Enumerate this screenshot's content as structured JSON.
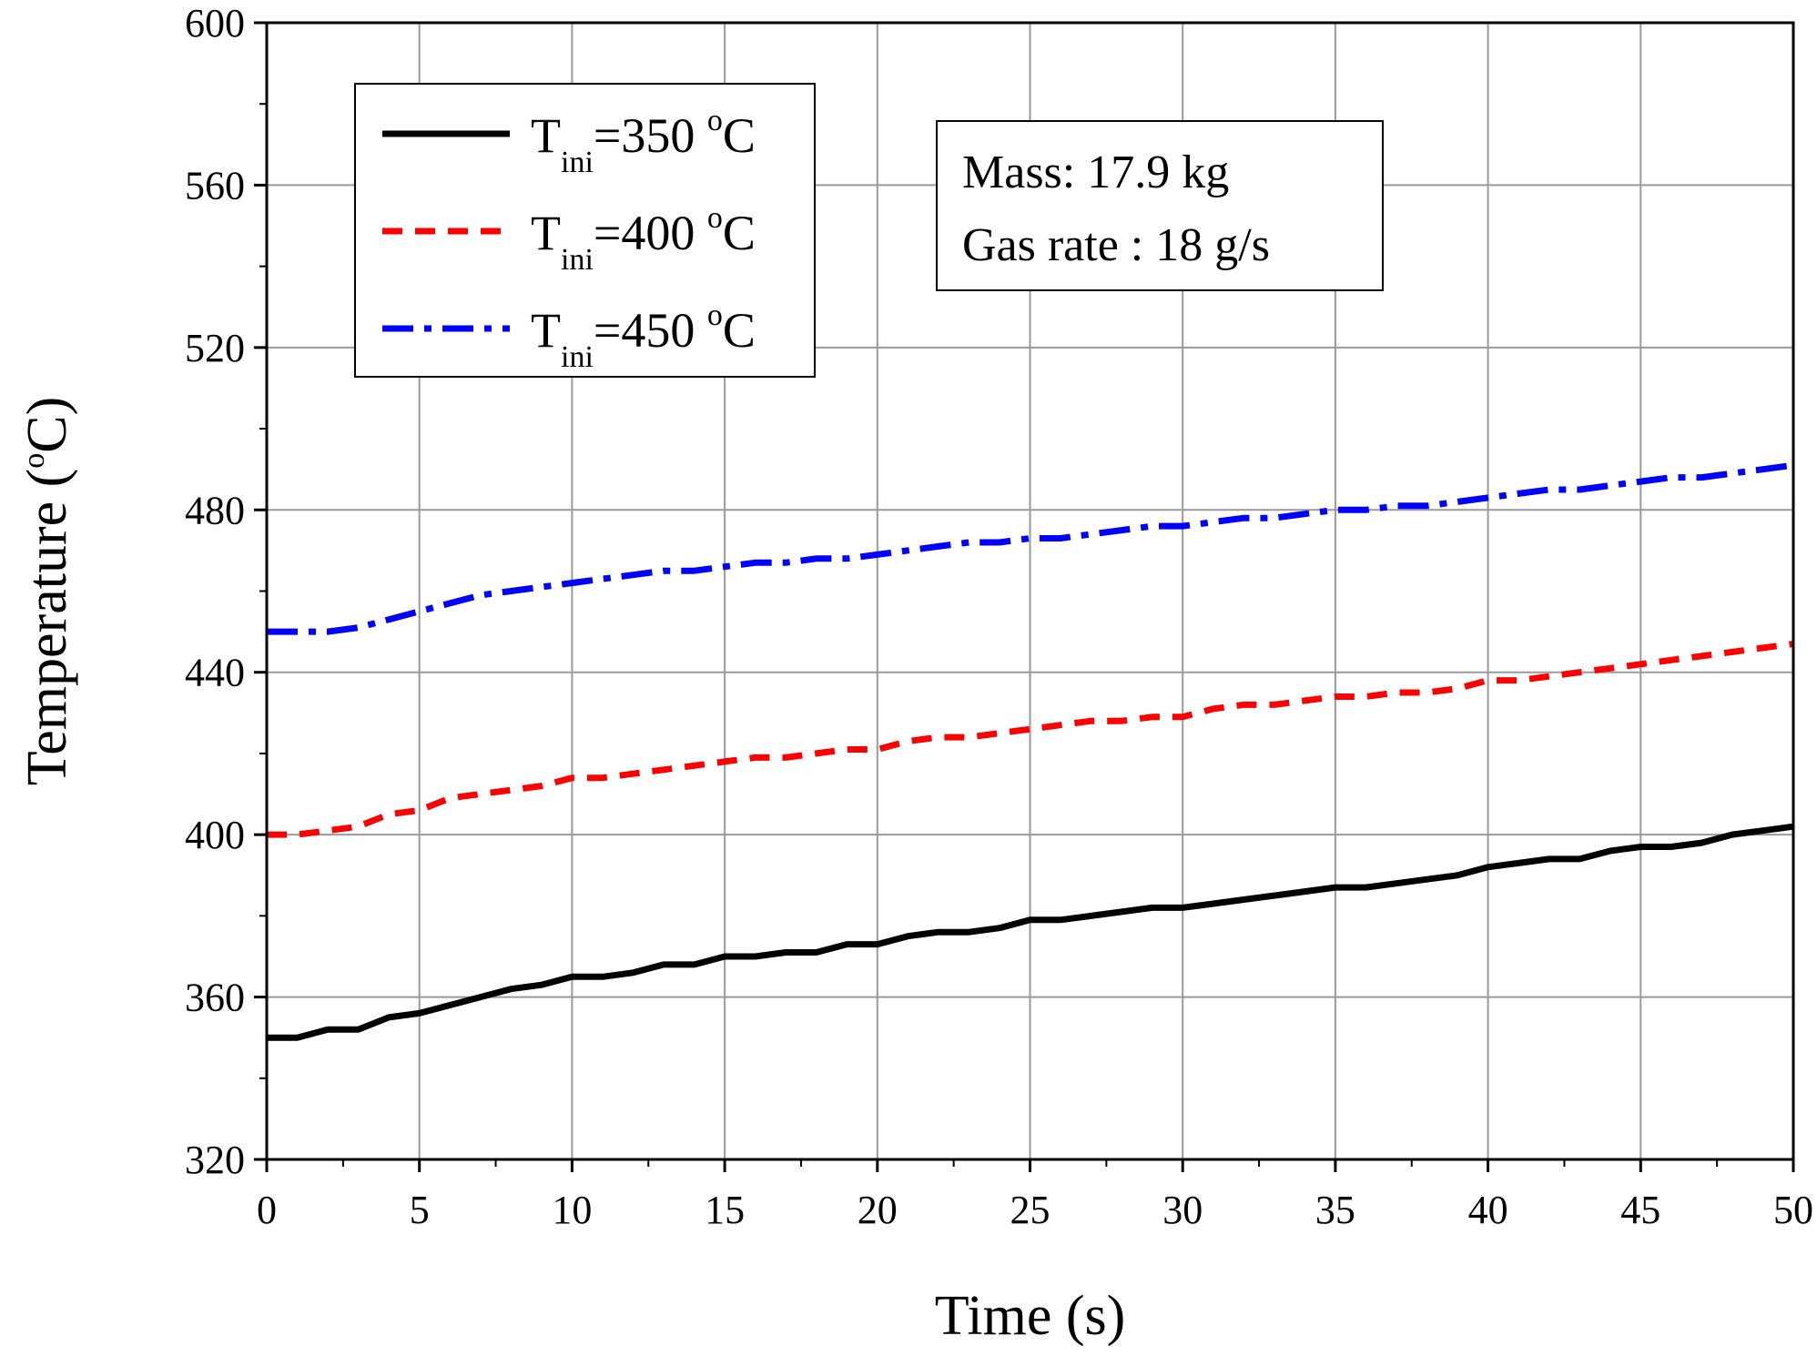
{
  "chart_data": {
    "type": "line",
    "xlabel": "Time (s)",
    "ylabel_prefix": "Temperature (",
    "ylabel_sup": "o",
    "ylabel_suffix": "C)",
    "xlim": [
      0,
      50
    ],
    "ylim": [
      320,
      600
    ],
    "xticks": [
      0,
      5,
      10,
      15,
      20,
      25,
      30,
      35,
      40,
      45,
      50
    ],
    "yticks": [
      320,
      360,
      400,
      440,
      480,
      520,
      560,
      600
    ],
    "grid": true,
    "legend_position": "top-left",
    "series": [
      {
        "name": "Tini=350 oC",
        "label_main": "T",
        "label_sub": "ini",
        "label_eq": "=350 ",
        "label_sup": "o",
        "label_unit": "C",
        "color": "#000000",
        "dash": "solid",
        "x": [
          0,
          1,
          2,
          3,
          4,
          5,
          6,
          7,
          8,
          9,
          10,
          11,
          12,
          13,
          14,
          15,
          16,
          17,
          18,
          19,
          20,
          21,
          22,
          23,
          24,
          25,
          26,
          27,
          28,
          29,
          30,
          31,
          32,
          33,
          34,
          35,
          36,
          37,
          38,
          39,
          40,
          41,
          42,
          43,
          44,
          45,
          46,
          47,
          48,
          49,
          50
        ],
        "y": [
          350,
          350,
          352,
          352,
          355,
          356,
          358,
          360,
          362,
          363,
          365,
          365,
          366,
          368,
          368,
          370,
          370,
          371,
          371,
          373,
          373,
          375,
          376,
          376,
          377,
          379,
          379,
          380,
          381,
          382,
          382,
          383,
          384,
          385,
          386,
          387,
          387,
          388,
          389,
          390,
          392,
          393,
          394,
          394,
          396,
          397,
          397,
          398,
          400,
          401,
          402
        ]
      },
      {
        "name": "Tini=400 oC",
        "label_main": "T",
        "label_sub": "ini",
        "label_eq": "=400 ",
        "label_sup": "o",
        "label_unit": "C",
        "color": "#ff0000",
        "dash": "dash",
        "x": [
          0,
          1,
          2,
          3,
          4,
          5,
          6,
          7,
          8,
          9,
          10,
          11,
          12,
          13,
          14,
          15,
          16,
          17,
          18,
          19,
          20,
          21,
          22,
          23,
          24,
          25,
          26,
          27,
          28,
          29,
          30,
          31,
          32,
          33,
          34,
          35,
          36,
          37,
          38,
          39,
          40,
          41,
          42,
          43,
          44,
          45,
          46,
          47,
          48,
          49,
          50
        ],
        "y": [
          400,
          400,
          401,
          402,
          405,
          406,
          409,
          410,
          411,
          412,
          414,
          414,
          415,
          416,
          417,
          418,
          419,
          419,
          420,
          421,
          421,
          423,
          424,
          424,
          425,
          426,
          427,
          428,
          428,
          429,
          429,
          431,
          432,
          432,
          433,
          434,
          434,
          435,
          435,
          436,
          438,
          438,
          439,
          440,
          441,
          442,
          443,
          444,
          445,
          446,
          447
        ]
      },
      {
        "name": "Tini=450 oC",
        "label_main": "T",
        "label_sub": "ini",
        "label_eq": "=450 ",
        "label_sup": "o",
        "label_unit": "C",
        "color": "#0000ff",
        "dash": "dashdot",
        "x": [
          0,
          1,
          2,
          3,
          4,
          5,
          6,
          7,
          8,
          9,
          10,
          11,
          12,
          13,
          14,
          15,
          16,
          17,
          18,
          19,
          20,
          21,
          22,
          23,
          24,
          25,
          26,
          27,
          28,
          29,
          30,
          31,
          32,
          33,
          34,
          35,
          36,
          37,
          38,
          39,
          40,
          41,
          42,
          43,
          44,
          45,
          46,
          47,
          48,
          49,
          50
        ],
        "y": [
          450,
          450,
          450,
          451,
          453,
          455,
          457,
          459,
          460,
          461,
          462,
          463,
          464,
          465,
          465,
          466,
          467,
          467,
          468,
          468,
          469,
          470,
          471,
          472,
          472,
          473,
          473,
          474,
          475,
          476,
          476,
          477,
          478,
          478,
          479,
          480,
          480,
          481,
          481,
          482,
          483,
          484,
          485,
          485,
          486,
          487,
          488,
          488,
          489,
          490,
          491
        ]
      }
    ],
    "annotation": {
      "line1": "Mass: 17.9 kg",
      "line2": "Gas rate : 18 g/s"
    }
  }
}
